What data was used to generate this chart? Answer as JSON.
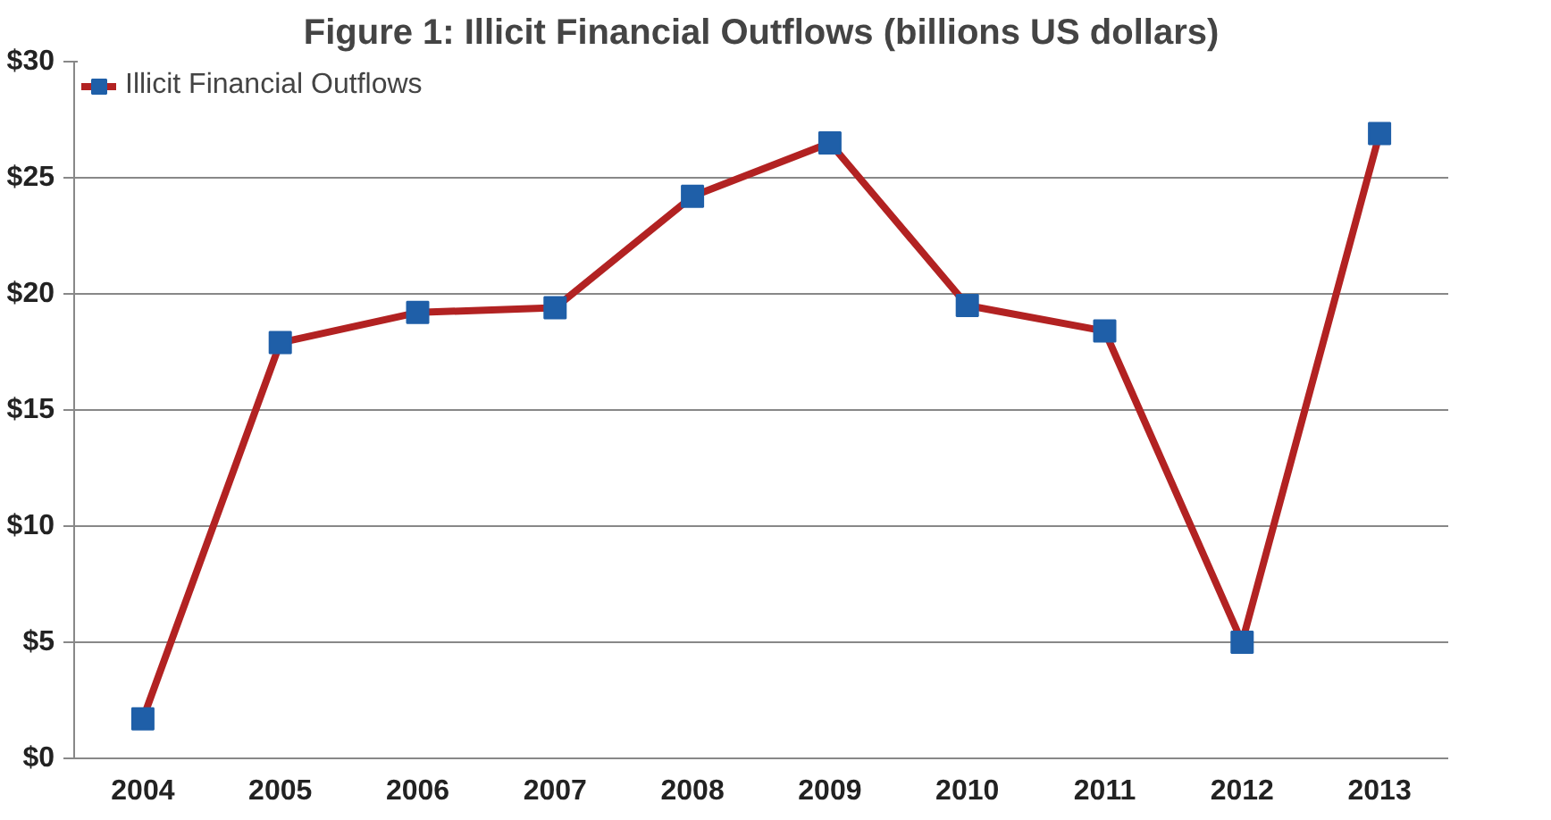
{
  "chart_data": {
    "type": "line",
    "title": "Figure 1: Illicit Financial Outflows (billions US dollars)",
    "categories": [
      "2004",
      "2005",
      "2006",
      "2007",
      "2008",
      "2009",
      "2010",
      "2011",
      "2012",
      "2013"
    ],
    "series": [
      {
        "name": "Illicit Financial Outflows",
        "color": "#b22222",
        "colors": [
          "#1f5fa8",
          "#1f5fa8",
          "#1f5fa8",
          "#1f5fa8",
          "#1f5fa8",
          "#1f5fa8",
          "#1f5fa8",
          "#1f5fa8",
          "#1f5fa8",
          "#1f5fa8"
        ],
        "values": [
          1.7,
          17.9,
          19.2,
          19.4,
          24.2,
          26.5,
          19.5,
          18.4,
          5.0,
          26.9
        ]
      }
    ],
    "ylim": [
      0,
      30
    ],
    "yticks": [
      {
        "value": 0,
        "label": "$0"
      },
      {
        "value": 5,
        "label": "$5"
      },
      {
        "value": 10,
        "label": "$10"
      },
      {
        "value": 15,
        "label": "$15"
      },
      {
        "value": 20,
        "label": "$20"
      },
      {
        "value": 25,
        "label": "$25"
      },
      {
        "value": 30,
        "label": "$30"
      }
    ],
    "grid": "y",
    "legend": "top left",
    "marker": "square",
    "line_style": "solid"
  }
}
